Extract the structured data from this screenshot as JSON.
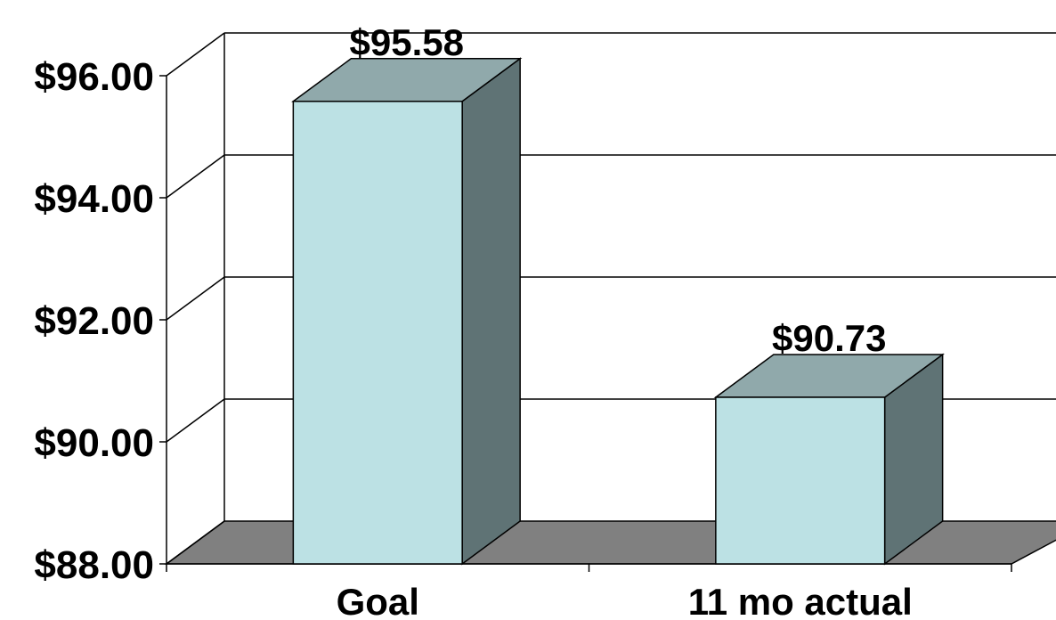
{
  "chart_data": {
    "type": "bar",
    "style": "3d",
    "categories": [
      "Goal",
      "11 mo actual"
    ],
    "values": [
      95.58,
      90.73
    ],
    "data_labels": [
      "$95.58",
      "$90.73"
    ],
    "title": "",
    "xlabel": "",
    "ylabel": "",
    "ylim": [
      88,
      96
    ],
    "yticks": [
      88,
      90,
      92,
      94,
      96
    ],
    "ytick_labels": [
      "$88.00",
      "$90.00",
      "$92.00",
      "$94.00",
      "$96.00"
    ],
    "grid": true,
    "legend": "none",
    "colors": {
      "bar_front": "#bce1e4",
      "bar_top": "#90a9ab",
      "bar_side": "#5f7375",
      "floor": "#808080",
      "gridline": "#000000"
    }
  }
}
